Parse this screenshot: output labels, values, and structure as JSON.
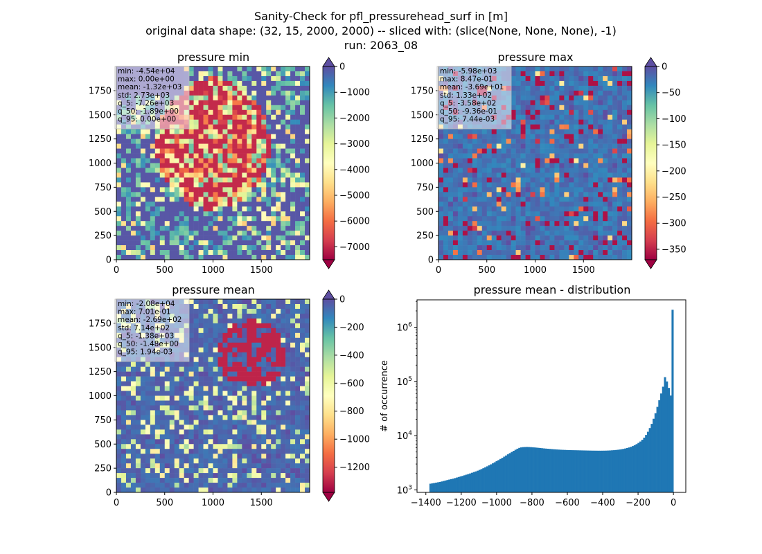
{
  "figure": {
    "suptitle_lines": [
      "Sanity-Check for pfl_pressurehead_surf in [m]",
      "original data shape: (32, 15, 2000, 2000) -- sliced with: (slice(None, None, None), -1)",
      "run: 2063_08"
    ]
  },
  "chart_data": [
    {
      "type": "heatmap",
      "title": "pressure min",
      "colormap": "Spectral",
      "x_ticks": [
        0,
        500,
        1000,
        1500
      ],
      "y_ticks": [
        0,
        250,
        500,
        750,
        1000,
        1250,
        1500,
        1750
      ],
      "xlim": [
        0,
        2000
      ],
      "ylim": [
        0,
        2000
      ],
      "colorbar": {
        "vmin": -7500,
        "vmax": 0,
        "ticks": [
          0,
          -1000,
          -2000,
          -3000,
          -4000,
          -5000,
          -6000,
          -7000
        ],
        "extend": "both"
      },
      "stats": [
        "min: -4.54e+04",
        "max: 0.00e+00",
        "mean: -1.32e+03",
        "std: 2.73e+03",
        "q_5: -7.26e+03",
        "q_50: -1.89e+00",
        "q_95: 0.00e+00"
      ]
    },
    {
      "type": "heatmap",
      "title": "pressure max",
      "colormap": "Spectral",
      "x_ticks": [
        0,
        500,
        1000,
        1500
      ],
      "y_ticks": [
        0,
        250,
        500,
        750,
        1000,
        1250,
        1500,
        1750
      ],
      "xlim": [
        0,
        2000
      ],
      "ylim": [
        0,
        2000
      ],
      "colorbar": {
        "vmin": -370,
        "vmax": 0,
        "ticks": [
          0,
          -50,
          -100,
          -150,
          -200,
          -250,
          -300,
          -350
        ],
        "extend": "both"
      },
      "stats": [
        "min: -5.98e+03",
        "max: 8.47e-01",
        "mean: -3.69e+01",
        "std: 1.33e+02",
        "q_5: -3.58e+02",
        "q_50: -9.36e-01",
        "q_95: 7.44e-03"
      ]
    },
    {
      "type": "heatmap",
      "title": "pressure mean",
      "colormap": "Spectral",
      "x_ticks": [
        0,
        500,
        1000,
        1500
      ],
      "y_ticks": [
        0,
        250,
        500,
        750,
        1000,
        1250,
        1500,
        1750
      ],
      "xlim": [
        0,
        2000
      ],
      "ylim": [
        0,
        2000
      ],
      "colorbar": {
        "vmin": -1380,
        "vmax": 0,
        "ticks": [
          0,
          -200,
          -400,
          -600,
          -800,
          -1000,
          -1200
        ],
        "extend": "both"
      },
      "stats": [
        "min: -2.08e+04",
        "max: 7.01e-01",
        "mean: -2.69e+02",
        "std: 7.14e+02",
        "q_5: -1.38e+03",
        "q_50: -1.48e+00",
        "q_95: 1.94e-03"
      ]
    },
    {
      "type": "bar",
      "title": "pressure mean - distribution",
      "ylabel": "# of occurrence",
      "xlabel": "",
      "x_ticks": [
        -1400,
        -1200,
        -1000,
        -800,
        -600,
        -400,
        -200,
        0
      ],
      "xlim": [
        -1450,
        70
      ],
      "y_scale": "log",
      "ylim": [
        900,
        3200000
      ],
      "y_ticks": [
        {
          "value": 1000,
          "base": "10",
          "exp": "3"
        },
        {
          "value": 10000,
          "base": "10",
          "exp": "4"
        },
        {
          "value": 100000,
          "base": "10",
          "exp": "5"
        },
        {
          "value": 1000000,
          "base": "10",
          "exp": "6"
        }
      ],
      "color": "#1f77b4",
      "bins": {
        "x_start": -1380,
        "x_end": 0
      },
      "values": [
        1300,
        1320,
        1340,
        1360,
        1380,
        1400,
        1430,
        1460,
        1490,
        1520,
        1550,
        1580,
        1610,
        1650,
        1690,
        1730,
        1770,
        1810,
        1860,
        1910,
        1960,
        2010,
        2070,
        2130,
        2190,
        2260,
        2340,
        2420,
        2510,
        2610,
        2720,
        2840,
        2960,
        3090,
        3230,
        3380,
        3540,
        3720,
        3900,
        4100,
        4310,
        4530,
        4760,
        5000,
        5250,
        5500,
        5750,
        5950,
        6080,
        6150,
        6180,
        6200,
        6180,
        6150,
        6110,
        6070,
        6020,
        5970,
        5920,
        5870,
        5820,
        5780,
        5740,
        5700,
        5660,
        5620,
        5590,
        5560,
        5530,
        5500,
        5480,
        5460,
        5440,
        5420,
        5410,
        5400,
        5390,
        5380,
        5370,
        5360,
        5350,
        5340,
        5330,
        5320,
        5310,
        5300,
        5295,
        5290,
        5285,
        5280,
        5280,
        5285,
        5290,
        5300,
        5320,
        5340,
        5370,
        5400,
        5440,
        5490,
        5550,
        5620,
        5700,
        5800,
        5920,
        6060,
        6230,
        6430,
        6680,
        6980,
        7350,
        7800,
        8400,
        9200,
        10300,
        11800,
        13800,
        16500,
        20500,
        26000,
        34000,
        45000,
        60000,
        80000,
        120000,
        100000,
        76000,
        55000,
        2100000
      ]
    }
  ]
}
